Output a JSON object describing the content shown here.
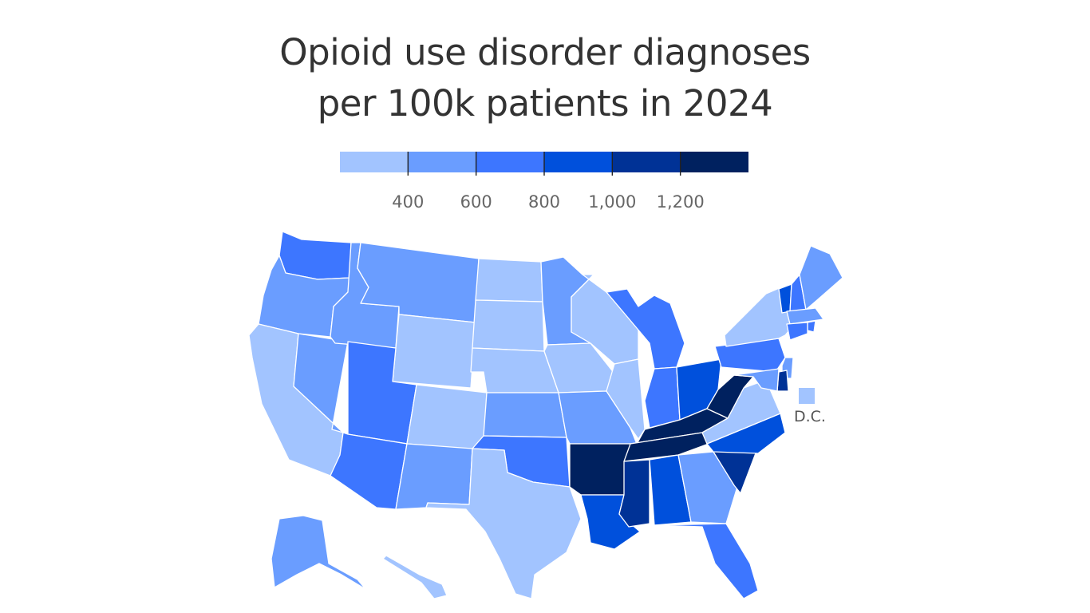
{
  "title": {
    "line1": "Opioid use disorder diagnoses",
    "line2": "per 100k patients in 2024"
  },
  "legend": {
    "bins": [
      {
        "color": "#a2c4ff"
      },
      {
        "color": "#6a9dff"
      },
      {
        "color": "#3d76ff"
      },
      {
        "color": "#0050dc"
      },
      {
        "color": "#003296"
      },
      {
        "color": "#00215f"
      }
    ],
    "breaks": [
      {
        "value": 400,
        "label": "400"
      },
      {
        "value": 600,
        "label": "600"
      },
      {
        "value": 800,
        "label": "800"
      },
      {
        "value": 1000,
        "label": "1,000"
      },
      {
        "value": 1200,
        "label": "1,200"
      }
    ]
  },
  "map": {
    "dc_label": "D.C.",
    "states": [
      {
        "id": "WA",
        "bin": 2
      },
      {
        "id": "OR",
        "bin": 1
      },
      {
        "id": "CA",
        "bin": 0
      },
      {
        "id": "NV",
        "bin": 1
      },
      {
        "id": "ID",
        "bin": 1
      },
      {
        "id": "MT",
        "bin": 1
      },
      {
        "id": "WY",
        "bin": 0
      },
      {
        "id": "UT",
        "bin": 2
      },
      {
        "id": "AZ",
        "bin": 2
      },
      {
        "id": "CO",
        "bin": 0
      },
      {
        "id": "NM",
        "bin": 1
      },
      {
        "id": "ND",
        "bin": 0
      },
      {
        "id": "SD",
        "bin": 0
      },
      {
        "id": "NE",
        "bin": 0
      },
      {
        "id": "KS",
        "bin": 1
      },
      {
        "id": "OK",
        "bin": 2
      },
      {
        "id": "TX",
        "bin": 0
      },
      {
        "id": "MN",
        "bin": 1
      },
      {
        "id": "IA",
        "bin": 0
      },
      {
        "id": "MO",
        "bin": 1
      },
      {
        "id": "AR",
        "bin": 5
      },
      {
        "id": "LA",
        "bin": 3
      },
      {
        "id": "WI",
        "bin": 0
      },
      {
        "id": "IL",
        "bin": 0
      },
      {
        "id": "MI",
        "bin": 2
      },
      {
        "id": "IN",
        "bin": 2
      },
      {
        "id": "OH",
        "bin": 3
      },
      {
        "id": "KY",
        "bin": 5
      },
      {
        "id": "TN",
        "bin": 5
      },
      {
        "id": "MS",
        "bin": 4
      },
      {
        "id": "AL",
        "bin": 3
      },
      {
        "id": "GA",
        "bin": 1
      },
      {
        "id": "FL",
        "bin": 2
      },
      {
        "id": "SC",
        "bin": 4
      },
      {
        "id": "NC",
        "bin": 3
      },
      {
        "id": "VA",
        "bin": 0
      },
      {
        "id": "WV",
        "bin": 5
      },
      {
        "id": "PA",
        "bin": 2
      },
      {
        "id": "NY",
        "bin": 0
      },
      {
        "id": "VT",
        "bin": 3
      },
      {
        "id": "NH",
        "bin": 2
      },
      {
        "id": "ME",
        "bin": 1
      },
      {
        "id": "MA",
        "bin": 1
      },
      {
        "id": "RI",
        "bin": 2
      },
      {
        "id": "CT",
        "bin": 2
      },
      {
        "id": "NJ",
        "bin": 1
      },
      {
        "id": "DE",
        "bin": 4
      },
      {
        "id": "MD",
        "bin": 1
      },
      {
        "id": "AK",
        "bin": 1
      },
      {
        "id": "HI",
        "bin": 0
      },
      {
        "id": "DC",
        "bin": 0
      }
    ]
  }
}
